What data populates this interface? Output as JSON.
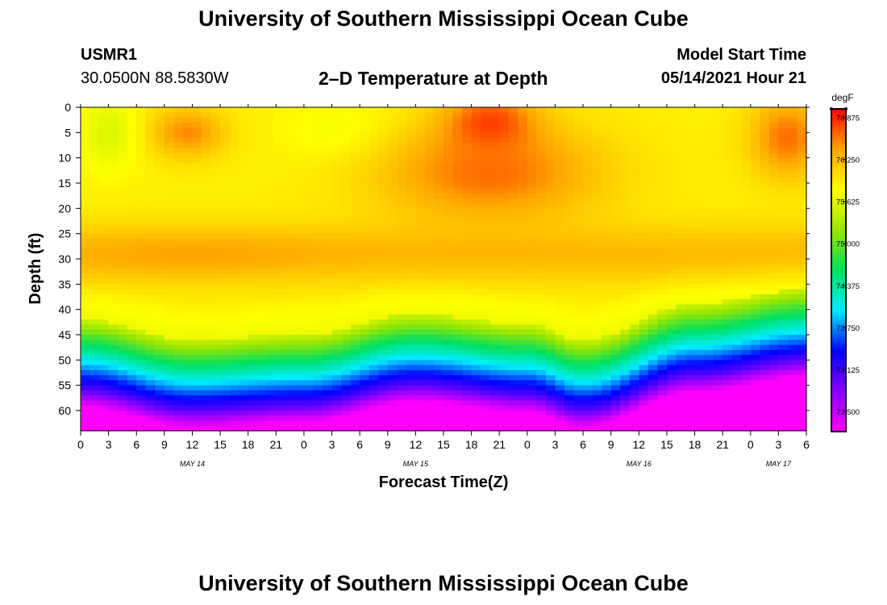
{
  "header": {
    "title_top": "University of Southern Mississippi Ocean Cube",
    "station": "USMR1",
    "location": "30.0500N  88.5830W",
    "plot_title": "2–D Temperature at Depth",
    "model_label": "Model Start Time",
    "model_time": "05/14/2021 Hour 21"
  },
  "footer": {
    "title_bottom": "University of Southern Mississippi Ocean Cube"
  },
  "chart_data": {
    "type": "heatmap",
    "xlabel": "Forecast Time(Z)",
    "ylabel": "Depth (ft)",
    "x_ticks": [
      "0",
      "3",
      "6",
      "9",
      "12",
      "15",
      "18",
      "21",
      "0",
      "3",
      "6",
      "9",
      "12",
      "15",
      "18",
      "21",
      "0",
      "3",
      "6",
      "9",
      "12",
      "15",
      "18",
      "21",
      "0",
      "3",
      "6"
    ],
    "date_labels": [
      {
        "label": "MAY 14",
        "hour": 12
      },
      {
        "label": "MAY 15",
        "hour": 36
      },
      {
        "label": "MAY 16",
        "hour": 60
      },
      {
        "label": "MAY 17",
        "hour": 75
      }
    ],
    "x_range_hours": [
      0,
      78
    ],
    "y_ticks": [
      0,
      5,
      10,
      15,
      20,
      25,
      30,
      35,
      40,
      45,
      50,
      55,
      60
    ],
    "y_range_ft": [
      0,
      64
    ],
    "colorbar": {
      "unit": "degF",
      "ticks": [
        "76.875",
        "76.250",
        "75.625",
        "75.000",
        "74.375",
        "73.750",
        "73.125",
        "72.500"
      ],
      "range": [
        72.2,
        77.0
      ],
      "colors": [
        "#ff00ff",
        "#8800ff",
        "#0000ff",
        "#00eeff",
        "#00e060",
        "#9ae600",
        "#ffff00",
        "#ffa500",
        "#ff0000"
      ]
    },
    "thermocline_depth_ft": [
      {
        "hour": 0,
        "depth": 48
      },
      {
        "hour": 12,
        "depth": 52
      },
      {
        "hour": 24,
        "depth": 51
      },
      {
        "hour": 36,
        "depth": 47
      },
      {
        "hour": 48,
        "depth": 49
      },
      {
        "hour": 54,
        "depth": 52
      },
      {
        "hour": 66,
        "depth": 45
      },
      {
        "hour": 78,
        "depth": 42
      }
    ],
    "surface_features": [
      {
        "hour": 11.5,
        "depth": 5,
        "temp": 76.5,
        "spread_h": 4,
        "spread_ft": 5
      },
      {
        "hour": 28,
        "depth": 5,
        "temp": 75.7,
        "spread_h": 6,
        "spread_ft": 6
      },
      {
        "hour": 44,
        "depth": 4,
        "temp": 76.9,
        "spread_h": 5,
        "spread_ft": 7
      },
      {
        "hour": 44,
        "depth": 13,
        "temp": 76.6,
        "spread_h": 12,
        "spread_ft": 10
      },
      {
        "hour": 3,
        "depth": 5,
        "temp": 75.6,
        "spread_h": 3,
        "spread_ft": 8
      },
      {
        "hour": 76,
        "depth": 6,
        "temp": 76.6,
        "spread_h": 4,
        "spread_ft": 8
      }
    ]
  }
}
